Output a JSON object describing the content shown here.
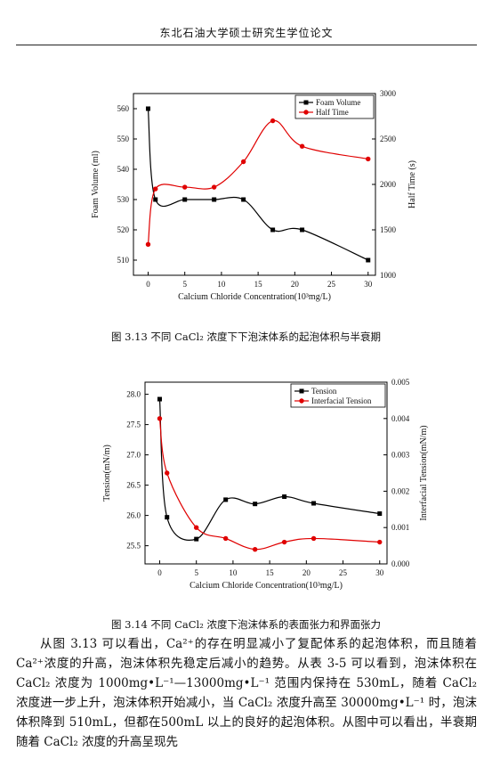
{
  "header": {
    "title": "东北石油大学硕士研究生学位论文"
  },
  "figure1": {
    "caption": "图 3.13  不同 CaCl₂ 浓度下下泡沫体系的起泡体积与半衰期"
  },
  "figure2": {
    "caption": "图 3.14  不同 CaCl₂ 浓度下泡沫体系的表面张力和界面张力"
  },
  "chart_data": [
    {
      "type": "line",
      "xlabel": "Calcium Chloride Concentration(10³mg/L)",
      "ylabel_left": "Foam Volume (ml)",
      "ylabel_right": "Half Time (s)",
      "xlim": [
        -2,
        31
      ],
      "ylim_left": [
        505,
        565
      ],
      "ylim_right": [
        1000,
        3000
      ],
      "x_ticks": [
        0,
        5,
        10,
        15,
        20,
        25,
        30
      ],
      "y_ticks_left": [
        510,
        520,
        530,
        540,
        550,
        560
      ],
      "y_ticks_right": [
        1000,
        1500,
        2000,
        2500,
        3000
      ],
      "legend_position": "top-right",
      "grid": false,
      "series": [
        {
          "name": "Foam Volume",
          "axis": "left",
          "color": "#000000",
          "marker": "square",
          "x": [
            0,
            1,
            5,
            9,
            13,
            17,
            21,
            30
          ],
          "y": [
            560,
            530,
            530,
            530,
            530,
            520,
            520,
            510
          ]
        },
        {
          "name": "Half Time",
          "axis": "right",
          "color": "#e00000",
          "marker": "circle",
          "x": [
            0,
            1,
            5,
            9,
            13,
            17,
            21,
            30
          ],
          "y": [
            1340,
            1950,
            1970,
            1970,
            2250,
            2700,
            2420,
            2280
          ]
        }
      ]
    },
    {
      "type": "line",
      "xlabel": "Calcium Chloride Concentration(10³mg/L)",
      "ylabel_left": "Tension(mN/m)",
      "ylabel_right": "Interfacial Tension(mN/m)",
      "xlim": [
        -2,
        31
      ],
      "ylim_left": [
        25.2,
        28.2
      ],
      "ylim_right": [
        0,
        0.005
      ],
      "x_ticks": [
        0,
        5,
        10,
        15,
        20,
        25,
        30
      ],
      "y_ticks_left": [
        25.5,
        26.0,
        26.5,
        27.0,
        27.5,
        28.0
      ],
      "y_ticks_left_labels": [
        "25.5",
        "26.0",
        "26.5",
        "27.0",
        "27.5",
        "28.0"
      ],
      "y_ticks_right": [
        0,
        0.001,
        0.002,
        0.003,
        0.004,
        0.005
      ],
      "y_ticks_right_labels": [
        "0.000",
        "0.001",
        "0.002",
        "0.003",
        "0.004",
        "0.005"
      ],
      "legend_position": "top-right",
      "grid": false,
      "series": [
        {
          "name": "Tension",
          "axis": "left",
          "color": "#000000",
          "marker": "square",
          "x": [
            0,
            1,
            5,
            9,
            13,
            17,
            21,
            30
          ],
          "y": [
            27.92,
            25.97,
            25.61,
            26.26,
            26.19,
            26.31,
            26.2,
            26.03
          ]
        },
        {
          "name": "Interfacial Tension",
          "axis": "right",
          "color": "#e00000",
          "marker": "circle",
          "x": [
            0,
            1,
            5,
            9,
            13,
            17,
            21,
            30
          ],
          "y": [
            0.004,
            0.0025,
            0.001,
            0.0007,
            0.0004,
            0.0006,
            0.0007,
            0.0006
          ]
        }
      ]
    }
  ],
  "body": {
    "paragraph": "从图 3.13 可以看出，Ca²⁺的存在明显减小了复配体系的起泡体积，而且随着 Ca²⁺浓度的升高，泡沫体积先稳定后减小的趋势。从表 3-5 可以看到，泡沫体积在 CaCl₂ 浓度为 1000mg•L⁻¹—13000mg•L⁻¹ 范围内保持在 530mL，随着 CaCl₂ 浓度进一步上升，泡沫体积开始减小，当 CaCl₂ 浓度升高至 30000mg•L⁻¹ 时，泡沫体积降到 510mL，但都在500mL 以上的良好的起泡体积。从图中可以看出，半衰期随着 CaCl₂ 浓度的升高呈现先"
  }
}
